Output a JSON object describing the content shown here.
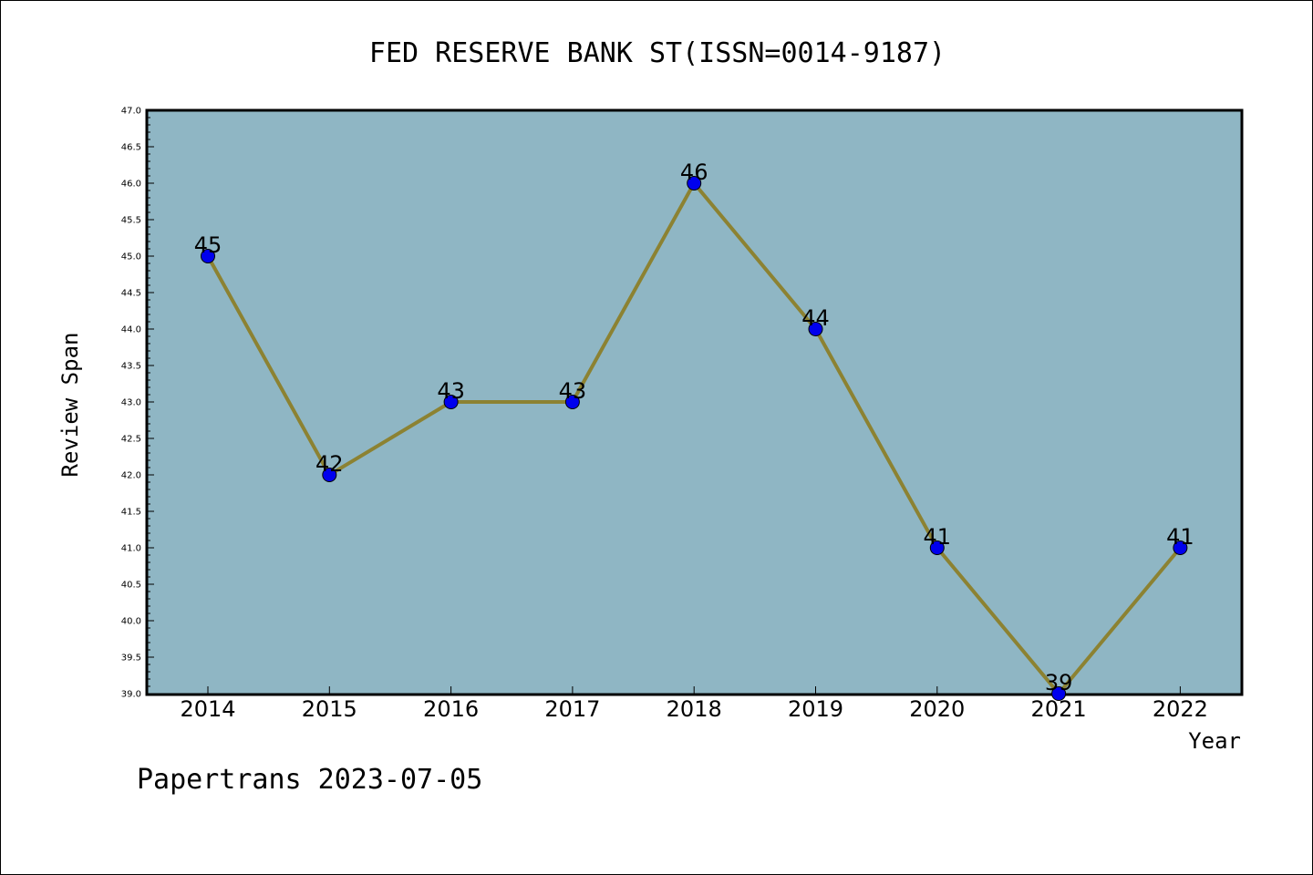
{
  "chart_data": {
    "type": "line",
    "title": "FED RESERVE BANK ST(ISSN=0014-9187)",
    "xlabel": "Year",
    "ylabel": "Review Span",
    "categories": [
      "2014",
      "2015",
      "2016",
      "2017",
      "2018",
      "2019",
      "2020",
      "2021",
      "2022"
    ],
    "series": [
      {
        "values": [
          45,
          42,
          43,
          43,
          46,
          44,
          41,
          39,
          41
        ]
      }
    ],
    "data_labels": [
      "45",
      "42",
      "43",
      "43",
      "46",
      "44",
      "41",
      "39",
      "41"
    ],
    "ylim": [
      39.0,
      47.0
    ],
    "ytick_labels": [
      "39.0",
      "39.5",
      "40.0",
      "40.5",
      "41.0",
      "41.5",
      "42.0",
      "42.5",
      "43.0",
      "43.5",
      "44.0",
      "44.5",
      "45.0",
      "45.5",
      "46.0",
      "46.5",
      "47.0"
    ],
    "grid": false,
    "legend": "none",
    "colors": {
      "plot_background": "#8fb6c4",
      "line": "#8c8232",
      "marker": "#0000ee"
    }
  },
  "footer": "Papertrans 2023-07-05"
}
